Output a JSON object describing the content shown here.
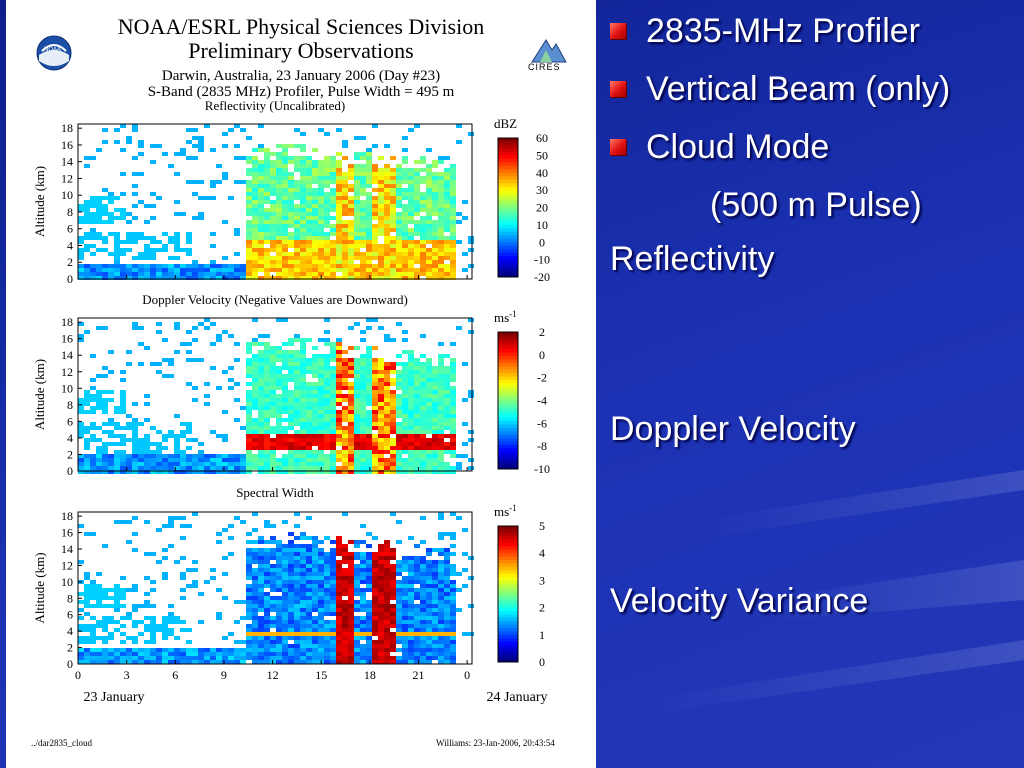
{
  "slide": {
    "bullets": [
      {
        "text": "2835-MHz Profiler"
      },
      {
        "text": "Vertical Beam (only)"
      },
      {
        "text": "Cloud Mode"
      }
    ],
    "sub_bullet": "(500 m Pulse)",
    "panel_labels": [
      "Reflectivity",
      "Doppler Velocity",
      "Velocity Variance"
    ],
    "colors": {
      "background": "#1c32b4",
      "bullet": "#e01010",
      "text": "#ffffff"
    }
  },
  "figure": {
    "header_line1": "NOAA/ESRL Physical Sciences Division",
    "header_line2": "Preliminary Observations",
    "site_line": "Darwin, Australia, 23 January 2006 (Day #23)",
    "instrument_line": "S-Band (2835 MHz) Profiler, Pulse Width = 495 m",
    "noaa_logo_text": "NOAA",
    "cires_logo_text": "CIRES",
    "y_axis_label": "Altitude (km)",
    "y_ticks": [
      "0",
      "2",
      "4",
      "6",
      "8",
      "10",
      "12",
      "14",
      "16",
      "18"
    ],
    "x_ticks": [
      "0",
      "3",
      "6",
      "9",
      "12",
      "15",
      "18",
      "21",
      "0"
    ],
    "x_date_start": "23 January",
    "x_date_end": "24 January",
    "footer_left": "../dar2835_cloud",
    "footer_right": "Williams: 23-Jan-2006, 20:43:54",
    "panels": [
      {
        "title": "Reflectivity (Uncalibrated)",
        "unit": "dBZ",
        "unit_sup": "",
        "colorbar_ticks": [
          "60",
          "50",
          "40",
          "30",
          "20",
          "10",
          "0",
          "-10",
          "-20"
        ]
      },
      {
        "title": "Doppler Velocity (Negative Values are Downward)",
        "unit": "ms",
        "unit_sup": "-1",
        "colorbar_ticks": [
          "2",
          "0",
          "-2",
          "-4",
          "-6",
          "-8",
          "-10"
        ]
      },
      {
        "title": "Spectral Width",
        "unit": "ms",
        "unit_sup": "-1",
        "colorbar_ticks": [
          "5",
          "4",
          "3",
          "2",
          "1",
          "0"
        ]
      }
    ]
  }
}
